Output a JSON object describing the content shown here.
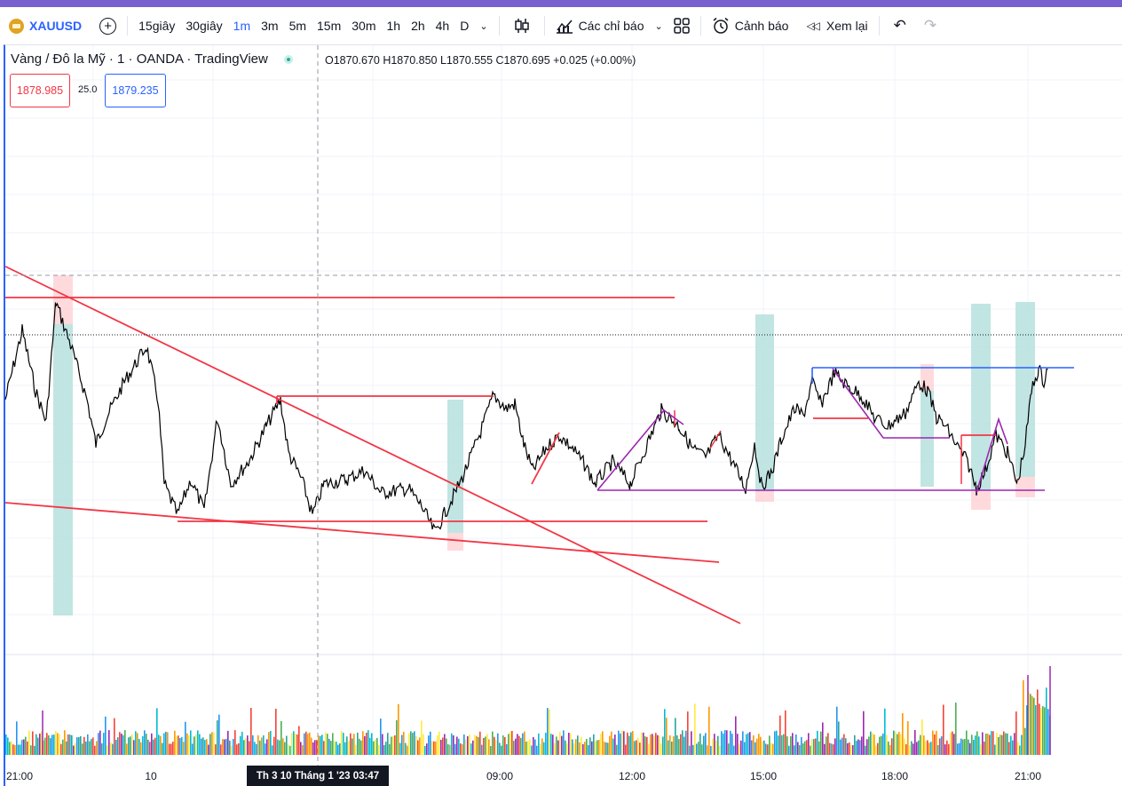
{
  "toolbar": {
    "symbol": "XAUUSD",
    "add_symbol_icon": "plus-circle-icon",
    "intervals": [
      "15giây",
      "30giây",
      "1m",
      "3m",
      "5m",
      "15m",
      "30m",
      "1h",
      "2h",
      "4h",
      "D"
    ],
    "active_interval": "1m",
    "indicators_label": "Các chỉ báo",
    "alert_label": "Cảnh báo",
    "replay_label": "Xem lại"
  },
  "legend": {
    "title": "Vàng / Đô la Mỹ · 1 · OANDA · TradingView",
    "ohlc": "O1870.670  H1870.850  L1870.555  C1870.695  +0.025 (+0.00%)",
    "sell_price": "1878.985",
    "spread": "25.0",
    "buy_price": "1879.235"
  },
  "time_axis": {
    "labels": [
      "21:00",
      "10",
      "09:00",
      "12:00",
      "15:00",
      "18:00",
      "21:00"
    ],
    "crosshair_label": "Th 3 10 Tháng 1 '23   03:47"
  },
  "colors": {
    "accent": "#2962ff",
    "trendline_red": "#f23645",
    "zigzag_purple": "#9c27b0",
    "box_green": "#b2dfdb",
    "box_red": "#ffcdd2"
  }
}
